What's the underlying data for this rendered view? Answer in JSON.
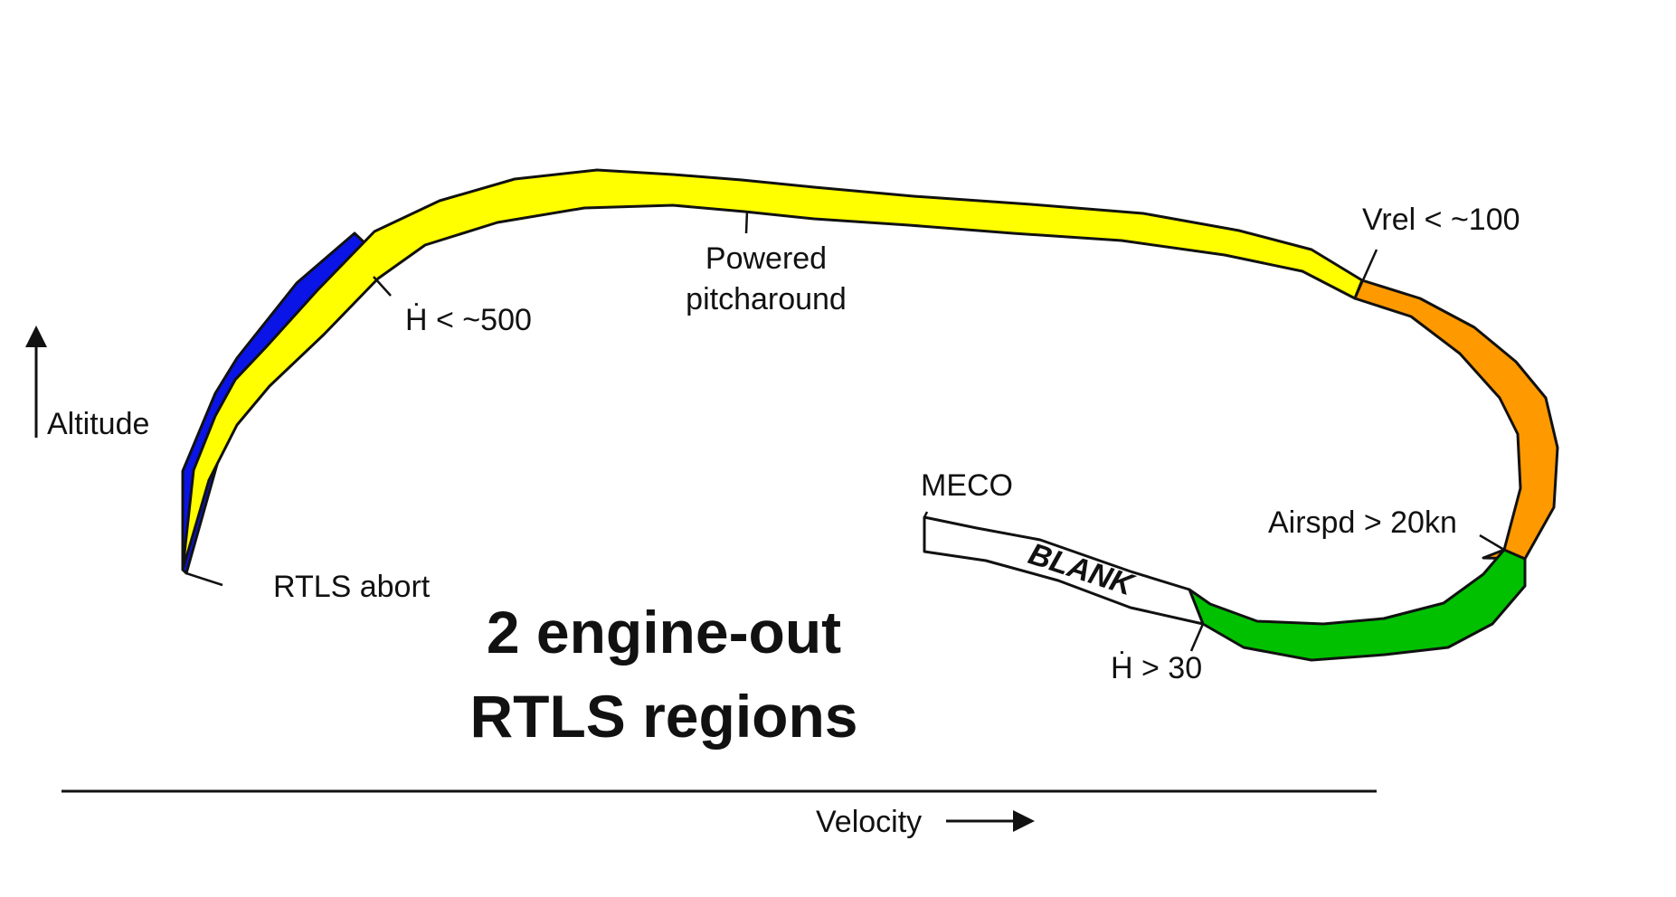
{
  "labels": {
    "rtls_abort": "RTLS abort",
    "hdot_500": "Ḣ < ~500",
    "powered_line1": "Powered",
    "powered_line2": "pitcharound",
    "vrel": "Vrel < ~100",
    "airspd": "Airspd > 20kn",
    "hdot_30": "Ḣ > 30",
    "meco": "MECO",
    "blank": "BLANK"
  },
  "title": {
    "line1": "2 engine-out",
    "line2": "RTLS regions"
  },
  "axes": {
    "y_label": "Altitude",
    "x_label": "Velocity"
  },
  "colors": {
    "blue_region": "#0a14e6",
    "yellow_region": "#ffff00",
    "orange_region": "#ff9900",
    "green_region": "#00c000",
    "blank_region": "#ffffff",
    "outline": "#111111"
  }
}
